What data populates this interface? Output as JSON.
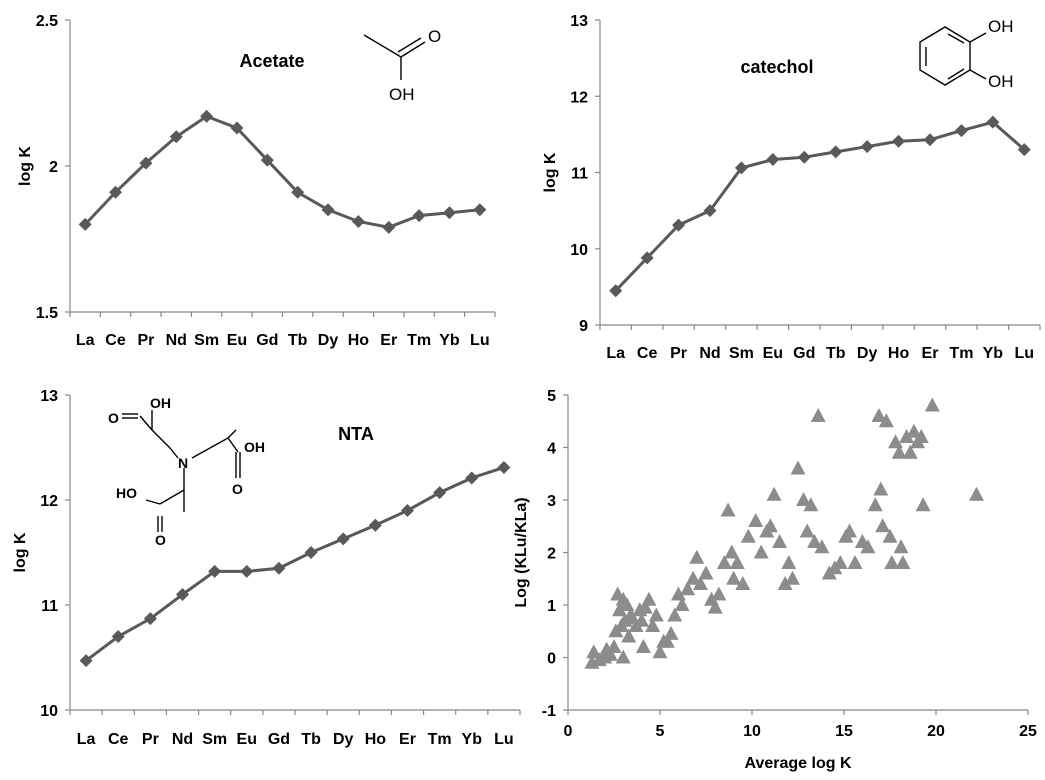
{
  "chart_data": [
    {
      "type": "line",
      "title": "Acetate",
      "xlabel": "",
      "ylabel": "log K",
      "categories": [
        "La",
        "Ce",
        "Pr",
        "Nd",
        "Sm",
        "Eu",
        "Gd",
        "Tb",
        "Dy",
        "Ho",
        "Er",
        "Tm",
        "Yb",
        "Lu"
      ],
      "ylim": [
        1.5,
        2.5
      ],
      "yticks": [
        "1.5",
        "2",
        "2.5"
      ],
      "series": [
        {
          "values": [
            1.8,
            1.91,
            2.01,
            2.1,
            2.17,
            2.13,
            2.02,
            1.91,
            1.85,
            1.81,
            1.79,
            1.83,
            1.84,
            1.85
          ]
        }
      ],
      "structure_labels": [
        "O",
        "OH"
      ],
      "series_color": "#595959"
    },
    {
      "type": "line",
      "title": "catechol",
      "xlabel": "",
      "ylabel": "log K",
      "categories": [
        "La",
        "Ce",
        "Pr",
        "Nd",
        "Sm",
        "Eu",
        "Gd",
        "Tb",
        "Dy",
        "Ho",
        "Er",
        "Tm",
        "Yb",
        "Lu"
      ],
      "ylim": [
        9,
        13
      ],
      "yticks": [
        "9",
        "10",
        "11",
        "12",
        "13"
      ],
      "series": [
        {
          "values": [
            9.45,
            9.88,
            10.31,
            10.5,
            11.06,
            11.17,
            11.2,
            11.27,
            11.34,
            11.41,
            11.43,
            11.55,
            11.66,
            11.3
          ]
        }
      ],
      "structure_labels": [
        "OH",
        "OH"
      ],
      "series_color": "#595959"
    },
    {
      "type": "line",
      "title": "NTA",
      "xlabel": "",
      "ylabel": "log K",
      "categories": [
        "La",
        "Ce",
        "Pr",
        "Nd",
        "Sm",
        "Eu",
        "Gd",
        "Tb",
        "Dy",
        "Ho",
        "Er",
        "Tm",
        "Yb",
        "Lu"
      ],
      "ylim": [
        10,
        13
      ],
      "yticks": [
        "10",
        "11",
        "12",
        "13"
      ],
      "series": [
        {
          "values": [
            10.47,
            10.7,
            10.87,
            11.1,
            11.32,
            11.32,
            11.35,
            11.5,
            11.63,
            11.76,
            11.9,
            12.07,
            12.21,
            12.31
          ]
        }
      ],
      "structure_labels": [
        "OH",
        "O",
        "N",
        "OH",
        "HO",
        "O",
        "O"
      ],
      "series_color": "#595959"
    },
    {
      "type": "scatter",
      "title": "",
      "xlabel": "Average log K",
      "ylabel": "Log (KLu/KLa)",
      "xlim": [
        0,
        25
      ],
      "ylim": [
        -1,
        5
      ],
      "xticks": [
        "0",
        "5",
        "10",
        "15",
        "20",
        "25"
      ],
      "yticks": [
        "-1",
        "0",
        "1",
        "2",
        "3",
        "4",
        "5"
      ],
      "marker": "triangle",
      "marker_color": "#8c8c8c",
      "series": [
        {
          "points": [
            [
              1.3,
              -0.1
            ],
            [
              1.4,
              0.1
            ],
            [
              1.7,
              -0.05
            ],
            [
              2.0,
              0.0
            ],
            [
              2.1,
              0.15
            ],
            [
              2.3,
              0.05
            ],
            [
              2.5,
              0.2
            ],
            [
              2.6,
              0.5
            ],
            [
              2.7,
              1.2
            ],
            [
              2.8,
              0.9
            ],
            [
              2.9,
              0.6
            ],
            [
              3.0,
              0.0
            ],
            [
              3.0,
              1.1
            ],
            [
              3.1,
              0.7
            ],
            [
              3.2,
              1.0
            ],
            [
              3.3,
              0.4
            ],
            [
              3.4,
              0.8
            ],
            [
              3.5,
              0.75
            ],
            [
              3.7,
              0.6
            ],
            [
              3.9,
              0.9
            ],
            [
              4.0,
              0.7
            ],
            [
              4.1,
              0.2
            ],
            [
              4.2,
              0.95
            ],
            [
              4.4,
              1.1
            ],
            [
              4.6,
              0.6
            ],
            [
              4.8,
              0.8
            ],
            [
              5.0,
              0.1
            ],
            [
              5.2,
              0.3
            ],
            [
              5.4,
              0.3
            ],
            [
              5.6,
              0.45
            ],
            [
              5.8,
              0.8
            ],
            [
              6.0,
              1.2
            ],
            [
              6.2,
              1.0
            ],
            [
              6.5,
              1.3
            ],
            [
              6.8,
              1.5
            ],
            [
              7.0,
              1.9
            ],
            [
              7.2,
              1.4
            ],
            [
              7.5,
              1.6
            ],
            [
              7.8,
              1.1
            ],
            [
              8.0,
              0.95
            ],
            [
              8.2,
              1.2
            ],
            [
              8.5,
              1.8
            ],
            [
              8.7,
              2.8
            ],
            [
              8.9,
              2.0
            ],
            [
              9.0,
              1.5
            ],
            [
              9.2,
              1.8
            ],
            [
              9.5,
              1.4
            ],
            [
              9.8,
              2.3
            ],
            [
              10.2,
              2.6
            ],
            [
              10.5,
              2.0
            ],
            [
              10.8,
              2.4
            ],
            [
              11.0,
              2.5
            ],
            [
              11.2,
              3.1
            ],
            [
              11.5,
              2.2
            ],
            [
              11.8,
              1.4
            ],
            [
              12.0,
              1.8
            ],
            [
              12.2,
              1.5
            ],
            [
              12.5,
              3.6
            ],
            [
              12.8,
              3.0
            ],
            [
              13.0,
              2.4
            ],
            [
              13.2,
              2.9
            ],
            [
              13.4,
              2.2
            ],
            [
              13.6,
              4.6
            ],
            [
              13.8,
              2.1
            ],
            [
              14.2,
              1.6
            ],
            [
              14.5,
              1.7
            ],
            [
              14.8,
              1.8
            ],
            [
              15.1,
              2.3
            ],
            [
              15.3,
              2.4
            ],
            [
              15.6,
              1.8
            ],
            [
              16.0,
              2.2
            ],
            [
              16.3,
              2.1
            ],
            [
              16.7,
              2.9
            ],
            [
              16.9,
              4.6
            ],
            [
              17.0,
              3.2
            ],
            [
              17.1,
              2.5
            ],
            [
              17.3,
              4.5
            ],
            [
              17.5,
              2.3
            ],
            [
              17.6,
              1.8
            ],
            [
              17.8,
              4.1
            ],
            [
              18.0,
              3.9
            ],
            [
              18.1,
              2.1
            ],
            [
              18.2,
              1.8
            ],
            [
              18.4,
              4.2
            ],
            [
              18.6,
              3.9
            ],
            [
              18.8,
              4.3
            ],
            [
              19.0,
              4.1
            ],
            [
              19.2,
              4.2
            ],
            [
              19.3,
              2.9
            ],
            [
              19.8,
              4.8
            ],
            [
              22.2,
              3.1
            ]
          ]
        }
      ]
    }
  ]
}
